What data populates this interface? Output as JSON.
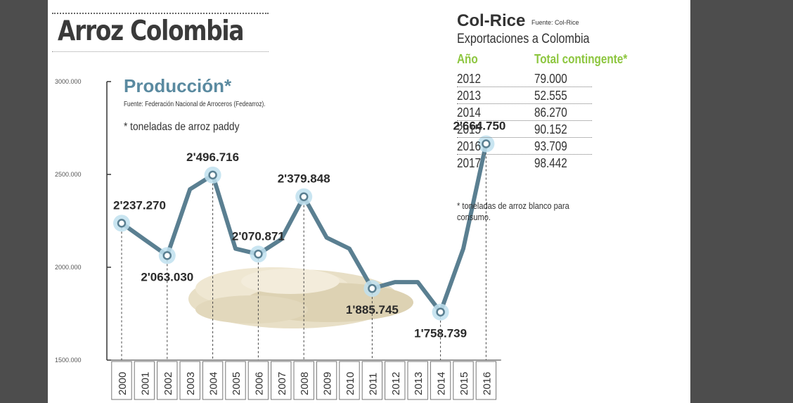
{
  "header": {
    "title": "Arroz Colombia"
  },
  "production": {
    "title": "Producción*",
    "source": "Fuente: Federación Nacional de Arroceros (Fedearroz).",
    "note": "* toneladas de arroz paddy"
  },
  "col_rice": {
    "title": "Col-Rice",
    "source": "Fuente: Col-Rice",
    "subtitle": "Exportaciones a Colombia",
    "col_year": "Año",
    "col_total": "Total contingente*",
    "rows": [
      {
        "year": "2012",
        "total": "79.000"
      },
      {
        "year": "2013",
        "total": "52.555"
      },
      {
        "year": "2014",
        "total": "86.270"
      },
      {
        "year": "2015",
        "total": "90.152"
      },
      {
        "year": "2016",
        "total": "93.709"
      },
      {
        "year": "2017",
        "total": "98.442"
      }
    ],
    "footnote": "* toneladas de arroz blanco para consumo."
  },
  "colors": {
    "background": "#4d4d4d",
    "card": "#ffffff",
    "line": "#5a7f91",
    "highlight": "#bfe0ef",
    "accent_green": "#8dc63f",
    "title_blue": "#5a8aa0",
    "rice": "#e6dcc0"
  },
  "chart_data": {
    "type": "line",
    "x": [
      "2000",
      "2001",
      "2002",
      "2003",
      "2004",
      "2005",
      "2006",
      "2007",
      "2008",
      "2009",
      "2010",
      "2011",
      "2012",
      "2013",
      "2014",
      "2015",
      "2016"
    ],
    "values": [
      2237270,
      2150000,
      2063030,
      2420000,
      2496716,
      2100000,
      2070871,
      2150000,
      2379848,
      2160000,
      2100000,
      1885745,
      1920000,
      1920000,
      1758739,
      2100000,
      2664750
    ],
    "highlighted": [
      {
        "index": 0,
        "label": "2'237.270",
        "label_pos": "above"
      },
      {
        "index": 2,
        "label": "2'063.030",
        "label_pos": "below"
      },
      {
        "index": 4,
        "label": "2'496.716",
        "label_pos": "above"
      },
      {
        "index": 6,
        "label": "2'070.871",
        "label_pos": "above"
      },
      {
        "index": 8,
        "label": "2'379.848",
        "label_pos": "above"
      },
      {
        "index": 11,
        "label": "1'885.745",
        "label_pos": "below"
      },
      {
        "index": 14,
        "label": "1'758.739",
        "label_pos": "below"
      },
      {
        "index": 16,
        "label": "2'664.750",
        "label_pos": "above"
      }
    ],
    "y_ticks": [
      {
        "value": 1500000,
        "label": "1500.000"
      },
      {
        "value": 2000000,
        "label": "2000.000"
      },
      {
        "value": 2500000,
        "label": "2500.000"
      },
      {
        "value": 3000000,
        "label": "3000.000"
      }
    ],
    "ylim": [
      1500000,
      3000000
    ],
    "grid": false,
    "legend": "none"
  }
}
